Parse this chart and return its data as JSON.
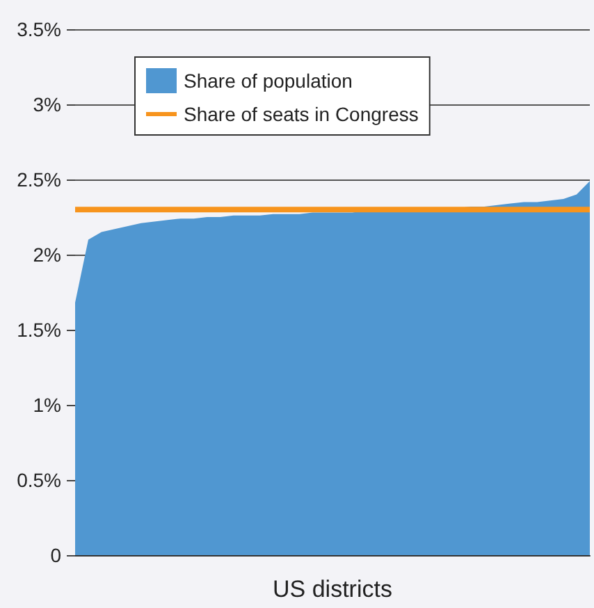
{
  "chart_data": {
    "type": "area",
    "xlabel": "US districts",
    "categories": [
      null,
      null,
      null,
      null,
      null,
      null,
      null,
      null,
      null,
      null,
      null,
      null,
      null,
      null,
      null,
      null,
      null,
      null,
      null,
      null,
      null,
      null,
      null,
      null,
      null,
      null,
      null,
      null,
      null,
      null,
      null,
      null,
      null,
      null,
      null,
      null,
      null,
      null,
      null,
      null
    ],
    "series": [
      {
        "name": "Share of population",
        "type": "area",
        "color": "#5097d1",
        "values": [
          1.68,
          2.1,
          2.15,
          2.17,
          2.19,
          2.21,
          2.22,
          2.23,
          2.24,
          2.24,
          2.25,
          2.25,
          2.26,
          2.26,
          2.26,
          2.27,
          2.27,
          2.27,
          2.28,
          2.28,
          2.28,
          2.28,
          2.29,
          2.29,
          2.29,
          2.3,
          2.3,
          2.3,
          2.31,
          2.31,
          2.32,
          2.32,
          2.33,
          2.34,
          2.35,
          2.35,
          2.36,
          2.37,
          2.4,
          2.49
        ]
      },
      {
        "name": "Share of seats in Congress",
        "type": "line",
        "color": "#f7941d",
        "values": [
          2.3,
          2.3,
          2.3,
          2.3,
          2.3,
          2.3,
          2.3,
          2.3,
          2.3,
          2.3,
          2.3,
          2.3,
          2.3,
          2.3,
          2.3,
          2.3,
          2.3,
          2.3,
          2.3,
          2.3,
          2.3,
          2.3,
          2.3,
          2.3,
          2.3,
          2.3,
          2.3,
          2.3,
          2.3,
          2.3,
          2.3,
          2.3,
          2.3,
          2.3,
          2.3,
          2.3,
          2.3,
          2.3,
          2.3,
          2.3
        ]
      }
    ],
    "ylim": [
      0,
      3.5
    ],
    "yticks": [
      0,
      {
        "value": 0.5,
        "label": "0.5%"
      },
      {
        "value": 1,
        "label": "1%"
      },
      {
        "value": 1.5,
        "label": "1.5%"
      },
      {
        "value": 2,
        "label": "2%"
      },
      {
        "value": 2.5,
        "label": "2.5%"
      },
      {
        "value": 3,
        "label": "3%"
      },
      {
        "value": 3.5,
        "label": "3.5%"
      }
    ],
    "grid": "y",
    "legend": "top left",
    "marker": "none"
  }
}
